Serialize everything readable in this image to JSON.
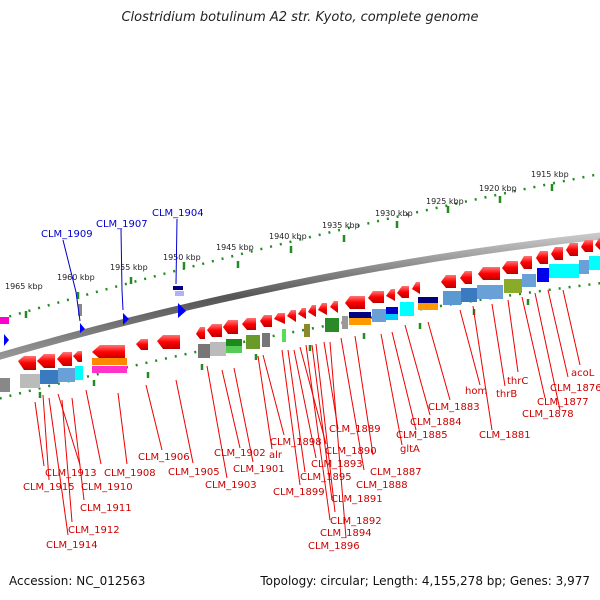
{
  "title": "Clostridium botulinum A2 str. Kyoto, complete genome",
  "footer": {
    "accession": "Accession: NC_012563",
    "topology": "Topology: circular; Length: 4,155,278 bp; Genes: 3,977"
  },
  "scale_labels": [
    "1965 kbp",
    "1960 kbp",
    "1955 kbp",
    "1950 kbp",
    "1945 kbp",
    "1940 kbp",
    "1935 kbp",
    "1930 kbp",
    "1925 kbp",
    "1920 kbp",
    "1915 kbp"
  ],
  "blue_labels": [
    "CLM_1909",
    "CLM_1907",
    "CLM_1904"
  ],
  "red_labels": [
    "CLM_1913",
    "CLM_1915",
    "CLM_1910",
    "CLM_1908",
    "CLM_1911",
    "CLM_1912",
    "CLM_1914",
    "CLM_1906",
    "CLM_1905",
    "CLM_1903",
    "CLM_1902",
    "CLM_1901",
    "alr",
    "CLM_1898",
    "CLM_1899",
    "CLM_1895",
    "CLM_1893",
    "CLM_1890",
    "CLM_1889",
    "CLM_1891",
    "CLM_1892",
    "CLM_1894",
    "CLM_1896",
    "CLM_1888",
    "CLM_1887",
    "gltA",
    "CLM_1885",
    "CLM_1884",
    "CLM_1883",
    "hom",
    "CLM_1881",
    "thrB",
    "thrC",
    "CLM_1878",
    "CLM_1877",
    "CLM_1876",
    "acoL"
  ],
  "colors": {
    "forward_gene": "#0000ff",
    "reverse_gene": "#ff0000",
    "label_red": "#cc0000",
    "label_blue": "#0000cc",
    "scale": "#228b22"
  }
}
